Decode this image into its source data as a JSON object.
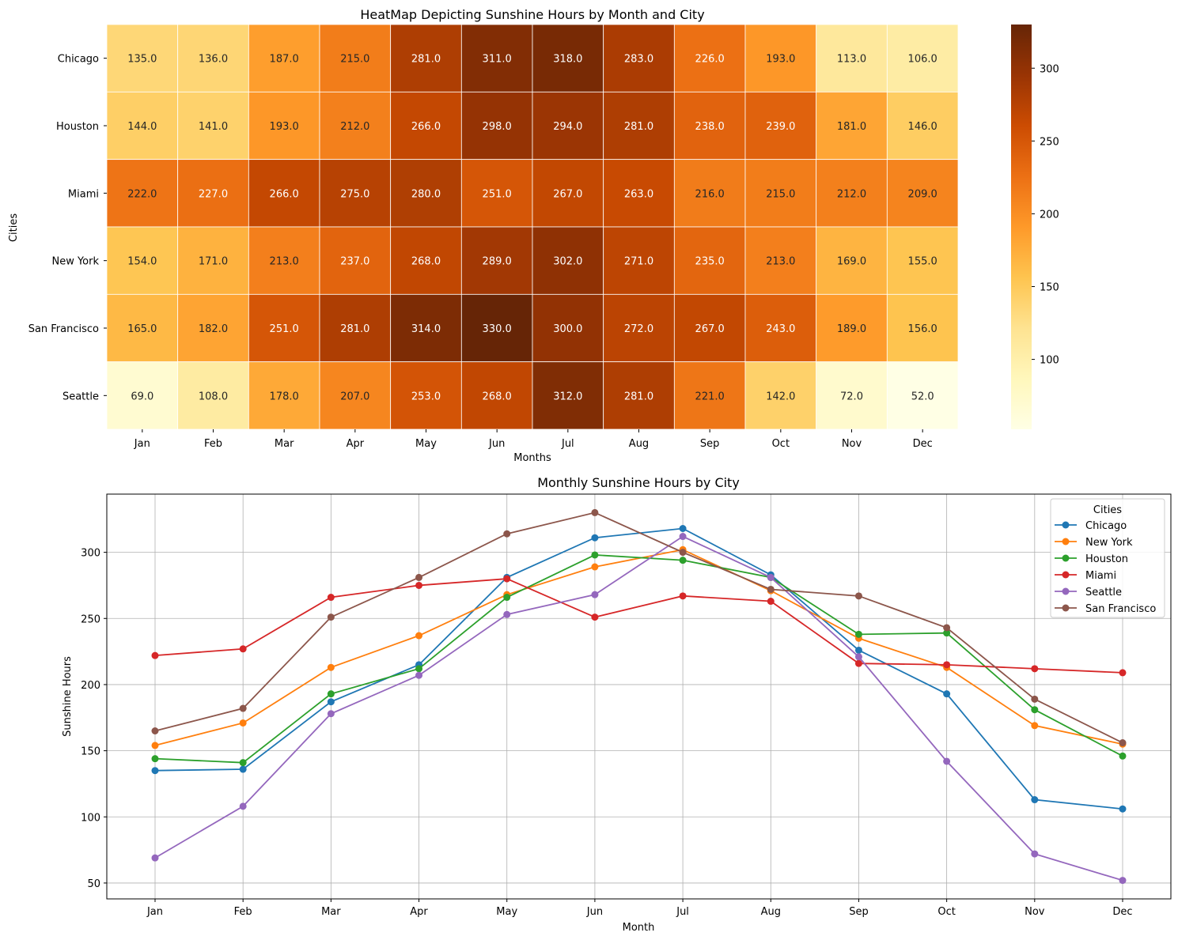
{
  "chart_data": [
    {
      "type": "heatmap",
      "title": "HeatMap Depicting Sunshine Hours by Month and City",
      "xlabel": "Months",
      "ylabel": "Cities",
      "x": [
        "Jan",
        "Feb",
        "Mar",
        "Apr",
        "May",
        "Jun",
        "Jul",
        "Aug",
        "Sep",
        "Oct",
        "Nov",
        "Dec"
      ],
      "y": [
        "Chicago",
        "Houston",
        "Miami",
        "New York",
        "San Francisco",
        "Seattle"
      ],
      "values": [
        [
          135.0,
          136.0,
          187.0,
          215.0,
          281.0,
          311.0,
          318.0,
          283.0,
          226.0,
          193.0,
          113.0,
          106.0
        ],
        [
          144.0,
          141.0,
          193.0,
          212.0,
          266.0,
          298.0,
          294.0,
          281.0,
          238.0,
          239.0,
          181.0,
          146.0
        ],
        [
          222.0,
          227.0,
          266.0,
          275.0,
          280.0,
          251.0,
          267.0,
          263.0,
          216.0,
          215.0,
          212.0,
          209.0
        ],
        [
          154.0,
          171.0,
          213.0,
          237.0,
          268.0,
          289.0,
          302.0,
          271.0,
          235.0,
          213.0,
          169.0,
          155.0
        ],
        [
          165.0,
          182.0,
          251.0,
          281.0,
          314.0,
          330.0,
          300.0,
          272.0,
          267.0,
          243.0,
          189.0,
          156.0
        ],
        [
          69.0,
          108.0,
          178.0,
          207.0,
          253.0,
          268.0,
          312.0,
          281.0,
          221.0,
          142.0,
          72.0,
          52.0
        ]
      ],
      "colormap": "YlOrBr",
      "vmin": 52,
      "vmax": 330,
      "colorbar_ticks": [
        100,
        150,
        200,
        250,
        300
      ]
    },
    {
      "type": "line",
      "title": "Monthly Sunshine Hours by City",
      "xlabel": "Month",
      "ylabel": "Sunshine Hours",
      "categories": [
        "Jan",
        "Feb",
        "Mar",
        "Apr",
        "May",
        "Jun",
        "Jul",
        "Aug",
        "Sep",
        "Oct",
        "Nov",
        "Dec"
      ],
      "ylim": [
        38,
        344
      ],
      "yticks": [
        50,
        100,
        150,
        200,
        250,
        300
      ],
      "grid": true,
      "legend_title": "Cities",
      "legend_position": "top-right",
      "series": [
        {
          "name": "Chicago",
          "color": "#1f77b4",
          "values": [
            135,
            136,
            187,
            215,
            281,
            311,
            318,
            283,
            226,
            193,
            113,
            106
          ]
        },
        {
          "name": "New York",
          "color": "#ff7f0e",
          "values": [
            154,
            171,
            213,
            237,
            268,
            289,
            302,
            271,
            235,
            213,
            169,
            155
          ]
        },
        {
          "name": "Houston",
          "color": "#2ca02c",
          "values": [
            144,
            141,
            193,
            212,
            266,
            298,
            294,
            281,
            238,
            239,
            181,
            146
          ]
        },
        {
          "name": "Miami",
          "color": "#d62728",
          "values": [
            222,
            227,
            266,
            275,
            280,
            251,
            267,
            263,
            216,
            215,
            212,
            209
          ]
        },
        {
          "name": "Seattle",
          "color": "#9467bd",
          "values": [
            69,
            108,
            178,
            207,
            253,
            268,
            312,
            281,
            221,
            142,
            72,
            52
          ]
        },
        {
          "name": "San Francisco",
          "color": "#8c564b",
          "values": [
            165,
            182,
            251,
            281,
            314,
            330,
            300,
            272,
            267,
            243,
            189,
            156
          ]
        }
      ]
    }
  ]
}
